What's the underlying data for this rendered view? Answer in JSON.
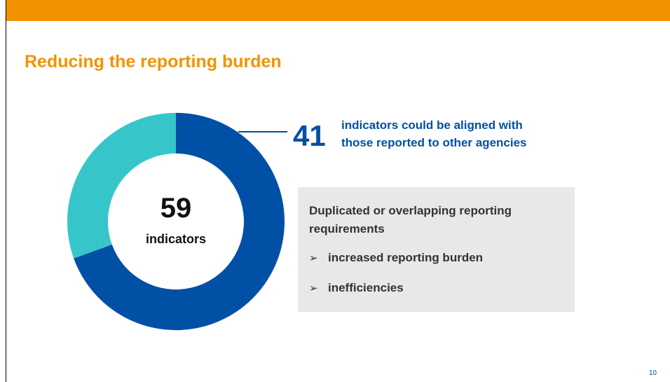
{
  "chart_data": {
    "type": "pie",
    "donut": true,
    "title": "Reducing the reporting burden",
    "values": [
      41,
      18
    ],
    "colors": [
      "#0050a6",
      "#36c6ca"
    ],
    "center_value": 59,
    "center_label": "indicators",
    "annotation": [
      "indicators could be aligned with",
      "those reported to other agencies"
    ]
  },
  "callout": {
    "heading": [
      "Duplicated or overlapping reporting",
      "requirements"
    ],
    "bullets": [
      "increased reporting burden",
      "inefficiencies"
    ]
  },
  "page_number": "10"
}
